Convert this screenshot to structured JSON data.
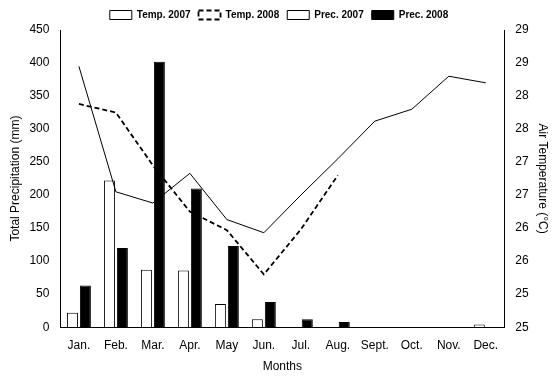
{
  "chart_data": {
    "type": "bar",
    "x_label": "Months",
    "y_label": "Total Precipitation (mm)",
    "y2_label": "Air Temperature (°C)",
    "categories": [
      "Jan.",
      "Feb.",
      "Mar.",
      "Apr.",
      "May",
      "Jun.",
      "Jul.",
      "Aug.",
      "Sept.",
      "Oct.",
      "Nov.",
      "Dec."
    ],
    "series": [
      {
        "name": "Prec. 2007",
        "type": "bar",
        "color": "#ffffff",
        "values": [
          22,
          222,
          87,
          86,
          35,
          12,
          0,
          0,
          0,
          0,
          0,
          4
        ]
      },
      {
        "name": "Prec. 2008",
        "type": "bar",
        "color": "#000000",
        "values": [
          63,
          120,
          402,
          210,
          123,
          38,
          12,
          8,
          0,
          0,
          0,
          0
        ]
      },
      {
        "name": "Temp. 2007",
        "type": "line",
        "axis": "y2",
        "color": "#000000",
        "line_style": "solid",
        "marker": "none",
        "values": [
          28.45,
          26.55,
          26.38,
          26.83,
          26.13,
          25.93,
          26.5,
          27.05,
          27.62,
          27.8,
          28.3,
          28.2
        ]
      },
      {
        "name": "Temp. 2008",
        "type": "line",
        "axis": "y2",
        "color": "#000000",
        "line_style": "dashed",
        "marker": "none",
        "values": [
          27.88,
          27.75,
          26.95,
          26.25,
          25.97,
          25.3,
          25.98,
          26.8,
          null,
          null,
          null,
          null
        ]
      }
    ],
    "ylim": [
      0,
      450
    ],
    "yticks": [
      0,
      50,
      100,
      150,
      200,
      250,
      300,
      350,
      400,
      450
    ],
    "y2lim": [
      24.5,
      29
    ],
    "y2ticks": [
      {
        "value": 24.5,
        "label": "25"
      },
      25,
      {
        "value": 25.5,
        "label": "26"
      },
      26,
      {
        "value": 26.5,
        "label": "27"
      },
      27,
      {
        "value": 27.5,
        "label": "28"
      },
      28,
      {
        "value": 28.5,
        "label": "29"
      },
      29
    ],
    "grid": false,
    "legend": "top"
  }
}
